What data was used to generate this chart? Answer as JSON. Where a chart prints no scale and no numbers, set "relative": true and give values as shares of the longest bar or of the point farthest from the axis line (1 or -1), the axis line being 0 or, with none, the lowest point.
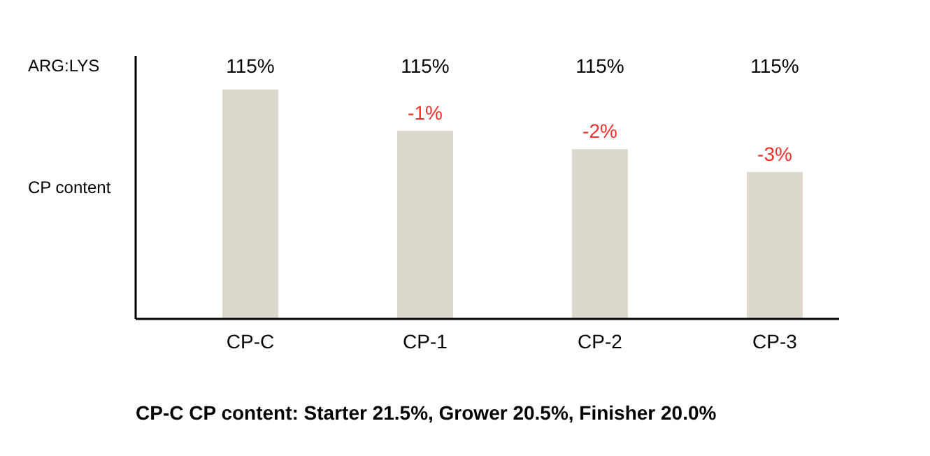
{
  "chart_data": {
    "type": "bar",
    "relative": true,
    "ylabel": "CP content",
    "categories": [
      "CP-C",
      "CP-1",
      "CP-2",
      "CP-3"
    ],
    "values": [
      1,
      0.82,
      0.74,
      0.64
    ],
    "color": "#dcd9cc",
    "annotations": [
      "ARG:LYS",
      "115%",
      "115%",
      "115%",
      "115%",
      {
        "text": "-1%",
        "x": "CP-1",
        "y": 0.82
      },
      {
        "text": "-2%",
        "x": "CP-2",
        "y": 0.74
      },
      {
        "text": "-3%",
        "x": "CP-3",
        "y": 0.64
      },
      "CP-C CP content: Starter 21.5%, Grower 20.5%, Finisher 20.0%"
    ]
  }
}
